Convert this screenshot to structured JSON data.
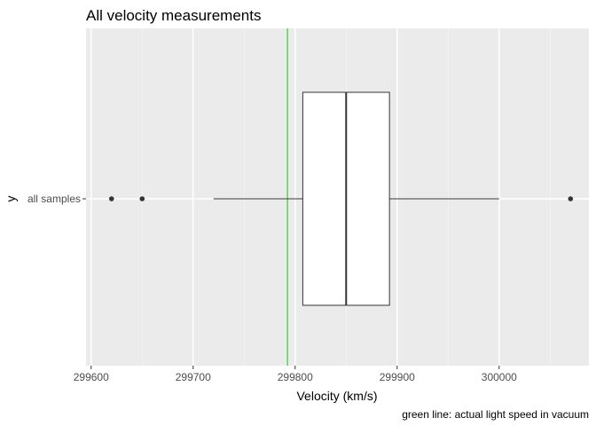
{
  "chart_data": {
    "type": "boxplot",
    "title": "All velocity measurements",
    "xlabel": "Velocity (km/s)",
    "ylabel": "y",
    "caption": "green line: actual light speed in vacuum",
    "categories": [
      "all samples"
    ],
    "xlim": [
      299595,
      300088
    ],
    "x_ticks": [
      299600,
      299700,
      299800,
      299900,
      300000
    ],
    "x_tick_labels": [
      "299600",
      "299700",
      "299800",
      "299900",
      "300000"
    ],
    "grid": true,
    "background": "#ebebeb",
    "box": {
      "whisker_low": 299720,
      "q1": 299807.5,
      "median": 299850,
      "q3": 299892.5,
      "whisker_high": 300000,
      "outliers": [
        299620,
        299650,
        300070
      ]
    },
    "reference_line": {
      "x": 299792.458,
      "color": "#33cc33"
    }
  }
}
